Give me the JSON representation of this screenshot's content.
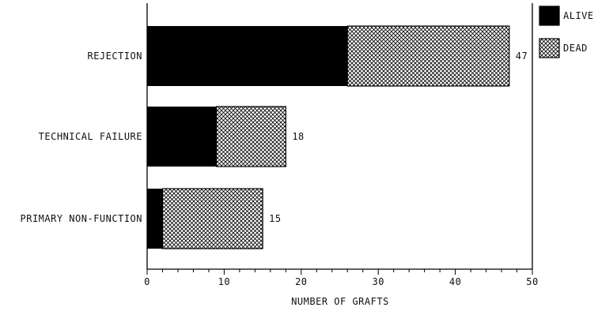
{
  "chart_data": {
    "type": "bar",
    "orientation": "horizontal",
    "stacked": true,
    "categories": [
      "REJECTION",
      "TECHNICAL FAILURE",
      "PRIMARY NON-FUNCTION"
    ],
    "series": [
      {
        "name": "ALIVE",
        "values": [
          26,
          9,
          2
        ],
        "fill": "solid-black"
      },
      {
        "name": "DEAD",
        "values": [
          21,
          9,
          13
        ],
        "fill": "crosshatch"
      }
    ],
    "totals": [
      "47",
      "18",
      "15"
    ],
    "title": "",
    "xlabel": "NUMBER OF GRAFTS",
    "ylabel": "",
    "xlim": [
      0,
      50
    ],
    "xticks": [
      "0",
      "10",
      "20",
      "30",
      "40",
      "50"
    ],
    "grid": false,
    "legend_position": "top-right",
    "colors": {
      "alive": "#000000",
      "dead_hatch": "#000000",
      "background": "#ffffff"
    }
  }
}
